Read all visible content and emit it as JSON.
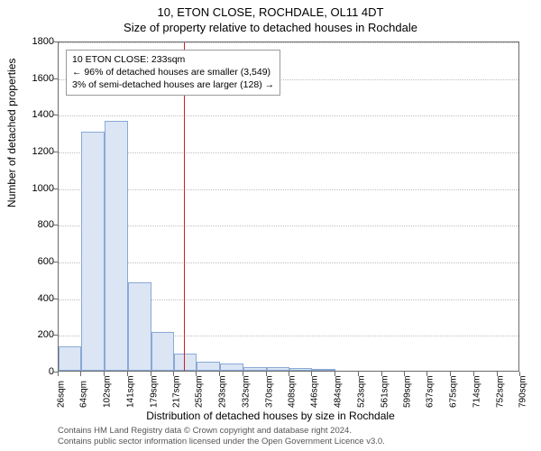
{
  "title_line1": "10, ETON CLOSE, ROCHDALE, OL11 4DT",
  "title_line2": "Size of property relative to detached houses in Rochdale",
  "ylabel": "Number of detached properties",
  "xlabel": "Distribution of detached houses by size in Rochdale",
  "footer_line1": "Contains HM Land Registry data © Crown copyright and database right 2024.",
  "footer_line2": "Contains public sector information licensed under the Open Government Licence v3.0.",
  "annotation": {
    "line1": "10 ETON CLOSE: 233sqm",
    "line2": "← 96% of detached houses are smaller (3,549)",
    "line3": "3% of semi-detached houses are larger (128) →"
  },
  "chart": {
    "type": "histogram",
    "x_min": 26,
    "x_max": 790,
    "y_min": 0,
    "y_max": 1800,
    "y_ticks": [
      0,
      200,
      400,
      600,
      800,
      1000,
      1200,
      1400,
      1600,
      1800
    ],
    "x_tick_values": [
      26,
      64,
      102,
      141,
      179,
      217,
      255,
      293,
      332,
      370,
      408,
      446,
      484,
      523,
      561,
      599,
      637,
      675,
      714,
      752,
      790
    ],
    "x_tick_labels": [
      "26sqm",
      "64sqm",
      "102sqm",
      "141sqm",
      "179sqm",
      "217sqm",
      "255sqm",
      "293sqm",
      "332sqm",
      "370sqm",
      "408sqm",
      "446sqm",
      "484sqm",
      "523sqm",
      "561sqm",
      "599sqm",
      "637sqm",
      "675sqm",
      "714sqm",
      "752sqm",
      "790sqm"
    ],
    "bar_fill": "#dbe5f4",
    "bar_stroke": "#8aa9d6",
    "grid_color": "#bfbfbf",
    "axis_color": "#6b6b6b",
    "background_color": "#ffffff",
    "reference_line": {
      "x": 233,
      "color": "#d21f1f"
    },
    "bars": [
      {
        "x0": 26,
        "x1": 64,
        "y": 135
      },
      {
        "x0": 64,
        "x1": 102,
        "y": 1305
      },
      {
        "x0": 102,
        "x1": 141,
        "y": 1360
      },
      {
        "x0": 141,
        "x1": 179,
        "y": 480
      },
      {
        "x0": 179,
        "x1": 217,
        "y": 210
      },
      {
        "x0": 217,
        "x1": 255,
        "y": 95
      },
      {
        "x0": 255,
        "x1": 293,
        "y": 50
      },
      {
        "x0": 293,
        "x1": 332,
        "y": 40
      },
      {
        "x0": 332,
        "x1": 370,
        "y": 22
      },
      {
        "x0": 370,
        "x1": 408,
        "y": 18
      },
      {
        "x0": 408,
        "x1": 446,
        "y": 14
      },
      {
        "x0": 446,
        "x1": 484,
        "y": 12
      }
    ]
  }
}
